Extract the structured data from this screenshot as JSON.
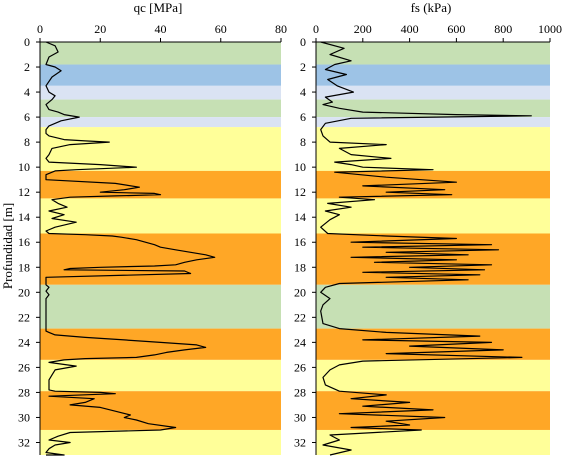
{
  "ylabel": "Profundidad [m]",
  "layer_colors": {
    "green": "#c6e0b4",
    "blue": "#9dc3e6",
    "lightblue": "#dae3f3",
    "yellow": "#ffff99",
    "orange": "#ffa726"
  },
  "layers": [
    {
      "top": 0.0,
      "bottom": 1.8,
      "color": "green"
    },
    {
      "top": 1.8,
      "bottom": 3.5,
      "color": "blue"
    },
    {
      "top": 3.5,
      "bottom": 4.6,
      "color": "lightblue"
    },
    {
      "top": 4.6,
      "bottom": 6.0,
      "color": "green"
    },
    {
      "top": 6.0,
      "bottom": 6.8,
      "color": "lightblue"
    },
    {
      "top": 6.8,
      "bottom": 10.3,
      "color": "yellow"
    },
    {
      "top": 10.3,
      "bottom": 12.5,
      "color": "orange"
    },
    {
      "top": 12.5,
      "bottom": 15.3,
      "color": "yellow"
    },
    {
      "top": 15.3,
      "bottom": 19.4,
      "color": "orange"
    },
    {
      "top": 19.4,
      "bottom": 22.9,
      "color": "green"
    },
    {
      "top": 22.9,
      "bottom": 25.4,
      "color": "orange"
    },
    {
      "top": 25.4,
      "bottom": 27.9,
      "color": "yellow"
    },
    {
      "top": 27.9,
      "bottom": 31.0,
      "color": "orange"
    },
    {
      "top": 31.0,
      "bottom": 33.0,
      "color": "yellow"
    }
  ],
  "chart_data": [
    {
      "type": "line",
      "title": "qc [MPa]",
      "xlim": [
        0,
        80
      ],
      "xticks": [
        "0",
        "20",
        "40",
        "60",
        "80"
      ],
      "ylim": [
        0,
        33
      ],
      "yticks": [
        "0",
        "2",
        "4",
        "6",
        "8",
        "10",
        "12",
        "14",
        "16",
        "18",
        "20",
        "22",
        "24",
        "26",
        "28",
        "30",
        "32"
      ],
      "y_inverted": true,
      "line_color": "#000000",
      "series": [
        {
          "x": [
            2,
            5,
            6,
            3,
            2,
            5,
            7,
            4,
            2,
            3,
            5,
            4,
            2,
            3,
            6,
            8,
            13,
            7,
            3,
            2,
            2,
            3,
            8,
            15,
            23,
            10,
            4,
            3,
            2,
            3,
            20,
            32,
            12,
            5,
            2,
            2,
            25,
            33,
            28,
            20,
            38,
            40,
            25,
            10,
            4,
            6,
            9,
            3,
            8,
            4,
            12,
            5,
            2,
            3,
            15,
            24,
            27,
            32,
            35,
            38,
            40,
            45,
            50,
            55,
            58,
            52,
            48,
            45,
            38,
            20,
            10,
            8,
            48,
            50,
            2,
            2,
            3,
            2,
            3,
            2,
            2,
            2,
            2,
            2,
            2,
            2,
            2,
            3,
            5,
            15,
            28,
            40,
            52,
            55,
            48,
            42,
            38,
            32,
            15,
            8,
            3,
            12,
            5,
            4,
            3,
            3,
            3,
            5,
            20,
            25,
            3,
            18,
            15,
            10,
            20,
            25,
            30,
            28,
            32,
            36,
            45,
            40,
            10,
            6,
            3,
            10,
            5,
            3,
            2,
            8,
            2
          ],
          "y": [
            0,
            0.3,
            0.8,
            1.2,
            1.8,
            2.0,
            2.3,
            2.8,
            3.5,
            4.0,
            4.3,
            4.6,
            5.0,
            5.4,
            5.6,
            5.8,
            6.0,
            6.3,
            6.7,
            7.0,
            7.3,
            7.5,
            7.8,
            7.9,
            8.0,
            8.2,
            8.5,
            9.0,
            9.3,
            9.6,
            9.8,
            10.0,
            10.2,
            10.3,
            10.6,
            11.0,
            11.3,
            11.6,
            11.8,
            12.0,
            12.1,
            12.2,
            12.3,
            12.4,
            12.6,
            12.9,
            13.2,
            13.5,
            13.8,
            14.1,
            14.4,
            14.8,
            15.1,
            15.3,
            15.4,
            15.5,
            15.6,
            15.8,
            16.0,
            16.2,
            16.4,
            16.6,
            16.8,
            17.0,
            17.2,
            17.4,
            17.6,
            17.8,
            17.9,
            18.0,
            18.1,
            18.2,
            18.3,
            18.5,
            18.8,
            19.4,
            19.6,
            19.9,
            20.2,
            20.5,
            21.0,
            21.5,
            22.0,
            22.5,
            22.9,
            23.0,
            23.1,
            23.2,
            23.4,
            23.6,
            23.8,
            24.0,
            24.2,
            24.4,
            24.6,
            24.8,
            25.0,
            25.2,
            25.3,
            25.4,
            25.6,
            25.9,
            26.2,
            26.6,
            27.0,
            27.5,
            27.8,
            27.9,
            28.0,
            28.1,
            28.3,
            28.5,
            28.8,
            29.0,
            29.2,
            29.5,
            29.8,
            30.0,
            30.2,
            30.5,
            30.8,
            31.0,
            31.2,
            31.5,
            31.8,
            32.0,
            32.2,
            32.5,
            32.8,
            33.0,
            33.0
          ]
        }
      ]
    },
    {
      "type": "line",
      "title": "fs (kPa)",
      "xlim": [
        0,
        1000
      ],
      "xticks": [
        "0",
        "200",
        "400",
        "600",
        "800",
        "1000"
      ],
      "ylim": [
        0,
        33
      ],
      "yticks": [
        "0",
        "2",
        "4",
        "6",
        "8",
        "10",
        "12",
        "14",
        "16",
        "18",
        "20",
        "22",
        "24",
        "26",
        "28",
        "30",
        "32"
      ],
      "y_inverted": true,
      "line_color": "#000000",
      "series": [
        {
          "x": [
            20,
            120,
            60,
            150,
            80,
            40,
            130,
            50,
            90,
            160,
            40,
            70,
            30,
            100,
            200,
            600,
            920,
            150,
            40,
            20,
            30,
            60,
            300,
            100,
            150,
            320,
            80,
            150,
            200,
            500,
            80,
            300,
            600,
            200,
            550,
            300,
            580,
            100,
            250,
            50,
            150,
            40,
            100,
            60,
            20,
            50,
            300,
            600,
            150,
            750,
            200,
            780,
            300,
            650,
            150,
            600,
            250,
            750,
            400,
            720,
            200,
            700,
            300,
            650,
            100,
            40,
            20,
            60,
            30,
            20,
            30,
            100,
            300,
            700,
            200,
            750,
            400,
            800,
            300,
            880,
            200,
            100,
            60,
            30,
            40,
            100,
            300,
            150,
            400,
            200,
            500,
            100,
            550,
            300,
            400,
            150,
            450,
            60,
            100,
            30,
            150,
            60
          ],
          "y": [
            0,
            0.5,
            1.0,
            1.5,
            1.8,
            2.2,
            2.6,
            3.0,
            3.5,
            4.0,
            4.4,
            4.8,
            5.0,
            5.3,
            5.6,
            5.8,
            5.9,
            6.1,
            6.5,
            7.0,
            7.5,
            8.0,
            8.2,
            8.5,
            9.0,
            9.3,
            9.6,
            9.8,
            10.0,
            10.2,
            10.4,
            10.8,
            11.2,
            11.5,
            11.8,
            12.0,
            12.2,
            12.4,
            12.6,
            12.9,
            13.2,
            13.5,
            13.8,
            14.2,
            14.8,
            15.3,
            15.5,
            15.7,
            16.0,
            16.2,
            16.4,
            16.6,
            16.8,
            17.0,
            17.2,
            17.4,
            17.6,
            17.8,
            18.0,
            18.2,
            18.4,
            18.6,
            18.8,
            19.0,
            19.3,
            19.6,
            20.0,
            20.5,
            21.0,
            21.5,
            22.5,
            22.9,
            23.2,
            23.5,
            23.8,
            24.0,
            24.3,
            24.6,
            24.9,
            25.2,
            25.5,
            25.8,
            26.2,
            26.8,
            27.4,
            27.9,
            28.2,
            28.5,
            28.8,
            29.1,
            29.4,
            29.7,
            30.0,
            30.3,
            30.6,
            30.8,
            31.0,
            31.4,
            31.8,
            32.2,
            32.6,
            33.0
          ]
        }
      ]
    }
  ]
}
